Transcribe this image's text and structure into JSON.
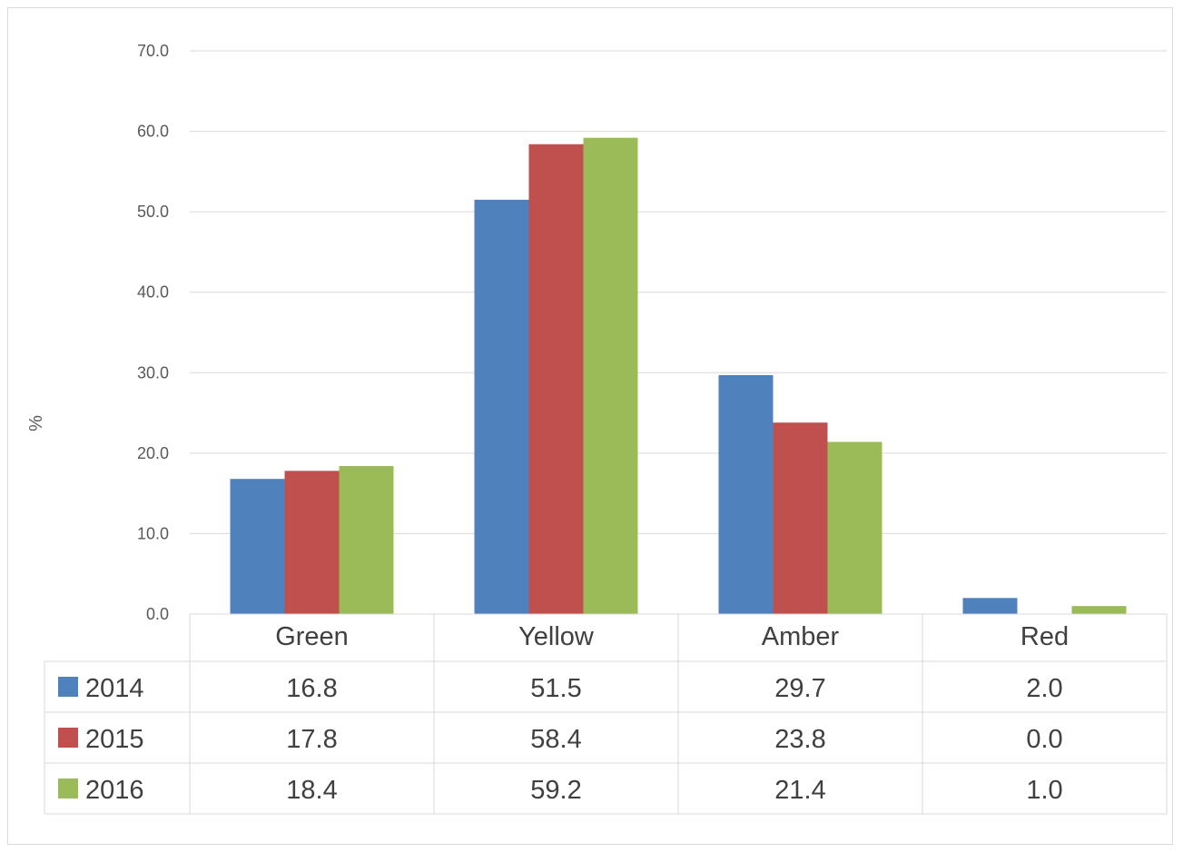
{
  "chart_data": {
    "type": "bar",
    "title": "",
    "xlabel": "",
    "ylabel": "%",
    "ylim": [
      0,
      70
    ],
    "yticks": [
      "0.0",
      "10.0",
      "20.0",
      "30.0",
      "40.0",
      "50.0",
      "60.0",
      "70.0"
    ],
    "grid": true,
    "legend": "data-table",
    "categories": [
      "Green",
      "Yellow",
      "Amber",
      "Red"
    ],
    "series": [
      {
        "name": "2014",
        "color": "#4f81bd",
        "values": [
          16.8,
          51.5,
          29.7,
          2.0
        ],
        "labels": [
          "16.8",
          "51.5",
          "29.7",
          "2.0"
        ]
      },
      {
        "name": "2015",
        "color": "#c0504d",
        "values": [
          17.8,
          58.4,
          23.8,
          0.0
        ],
        "labels": [
          "17.8",
          "58.4",
          "23.8",
          "0.0"
        ]
      },
      {
        "name": "2016",
        "color": "#9bbb59",
        "values": [
          18.4,
          59.2,
          21.4,
          1.0
        ],
        "labels": [
          "18.4",
          "59.2",
          "21.4",
          "1.0"
        ]
      }
    ]
  }
}
